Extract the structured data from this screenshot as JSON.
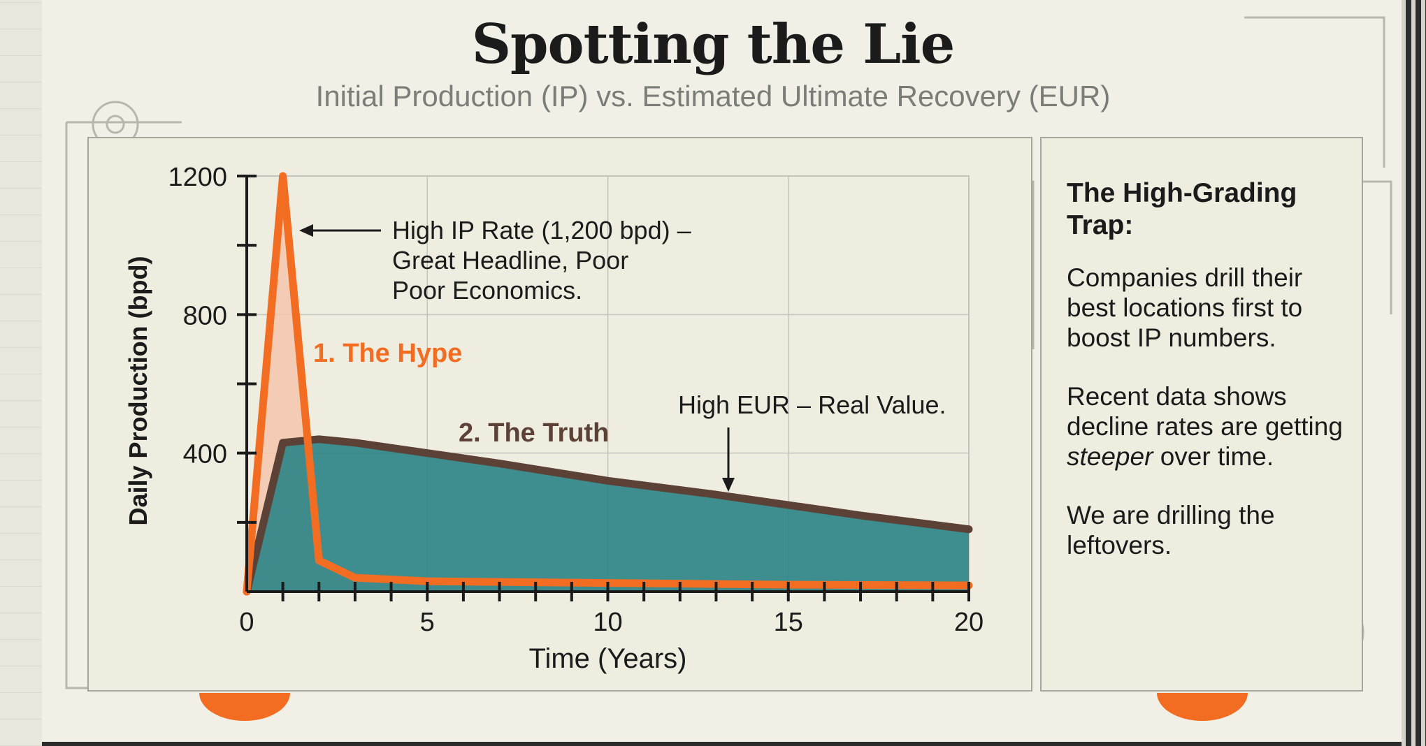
{
  "header": {
    "title": "Spotting the Lie",
    "subtitle": "Initial Production (IP) vs. Estimated Ultimate Recovery (EUR)"
  },
  "sidebar": {
    "heading": "The High-Grading Trap:",
    "p1": "Companies drill their best locations first to boost IP numbers.",
    "p2_pre": "Recent data shows decline rates are getting",
    "p2_em": "steeper",
    "p2_post": "over time.",
    "p3": "We are drilling the leftovers."
  },
  "colors": {
    "hype": "#f26d21",
    "hype_fill": "#f5c7ad",
    "truth_line": "#5c4236",
    "truth_fill": "#2f8488",
    "grid": "#c3c4bb",
    "axis": "#1b1b1b"
  },
  "chart_data": {
    "type": "area",
    "title": "",
    "xlabel": "Time (Years)",
    "ylabel": "Daily Production (bpd)",
    "xlim": [
      0,
      20
    ],
    "ylim": [
      0,
      1200
    ],
    "xticks": [
      0,
      5,
      10,
      15,
      20
    ],
    "yticks": [
      400,
      800,
      1200
    ],
    "series": [
      {
        "name": "1. The Hype",
        "label": "1. The Hype",
        "x": [
          0,
          1,
          2,
          3,
          5,
          10,
          15,
          20
        ],
        "y": [
          0,
          1200,
          90,
          40,
          30,
          25,
          20,
          18
        ]
      },
      {
        "name": "2. The Truth",
        "label": "2. The Truth",
        "x": [
          0,
          1,
          2,
          3,
          5,
          7,
          10,
          13,
          15,
          17,
          20
        ],
        "y": [
          0,
          430,
          440,
          430,
          400,
          370,
          320,
          280,
          250,
          220,
          180
        ]
      }
    ],
    "annotations": [
      {
        "id": "ip",
        "lines": [
          "High IP Rate (1,200 bpd) –",
          "Great Headline, Poor",
          "Poor Economics."
        ]
      },
      {
        "id": "eur",
        "lines": [
          "High EUR – Real Value."
        ]
      }
    ]
  }
}
